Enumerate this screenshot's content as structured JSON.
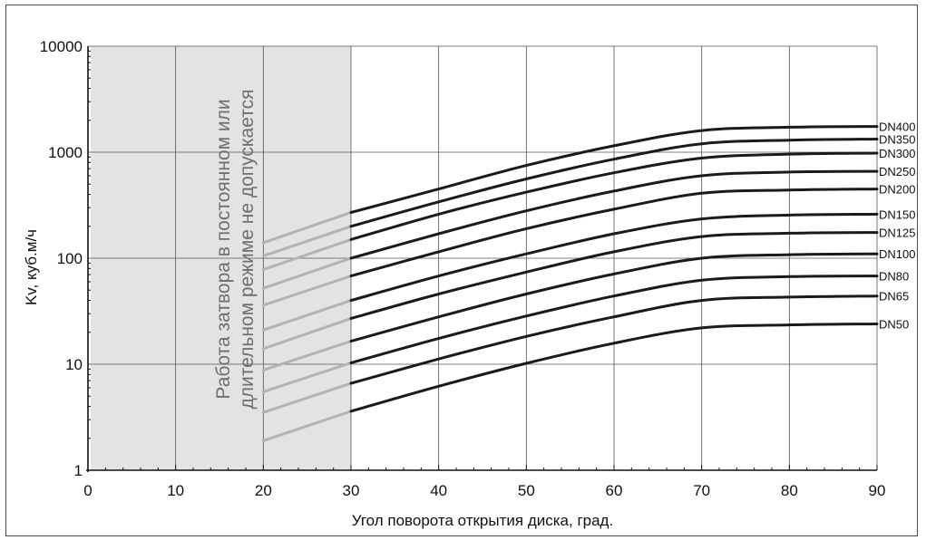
{
  "chart_data": {
    "type": "line",
    "title": "",
    "xlabel": "Угол поворота открытия диска, град.",
    "ylabel": "Kv, куб.м/ч",
    "xlim": [
      0,
      90
    ],
    "ylim": [
      1,
      10000
    ],
    "y_scale": "log",
    "x_ticks": [
      "0",
      "10",
      "20",
      "30",
      "40",
      "50",
      "60",
      "70",
      "80",
      "90"
    ],
    "y_ticks": [
      "1",
      "10",
      "100",
      "1000",
      "10000"
    ],
    "grid": true,
    "restricted_zone": {
      "x_range": [
        0,
        30
      ],
      "text_line1": "Работа затвора в постоянном или",
      "text_line2": "длительном режиме не допускается",
      "color": "#e2e3e5"
    },
    "colors": {
      "series": "#1a1a1a",
      "restricted_series": "#b3b3b3",
      "grid": "#555555"
    },
    "x": [
      20,
      30,
      40,
      50,
      60,
      70,
      80,
      90
    ],
    "series": [
      {
        "name": "DN400",
        "values": [
          140,
          270,
          450,
          750,
          1150,
          1600,
          1720,
          1750
        ]
      },
      {
        "name": "DN350",
        "values": [
          105,
          200,
          340,
          560,
          860,
          1200,
          1300,
          1330
        ]
      },
      {
        "name": "DN300",
        "values": [
          78,
          150,
          260,
          420,
          640,
          880,
          960,
          980
        ]
      },
      {
        "name": "DN250",
        "values": [
          52,
          100,
          170,
          280,
          430,
          600,
          650,
          660
        ]
      },
      {
        "name": "DN200",
        "values": [
          36,
          68,
          115,
          190,
          290,
          410,
          440,
          450
        ]
      },
      {
        "name": "DN150",
        "values": [
          21,
          40,
          68,
          110,
          170,
          235,
          255,
          260
        ]
      },
      {
        "name": "DN125",
        "values": [
          14,
          27,
          46,
          74,
          115,
          160,
          172,
          175
        ]
      },
      {
        "name": "DN100",
        "values": [
          8.8,
          16.5,
          28,
          46,
          71,
          100,
          108,
          110
        ]
      },
      {
        "name": "DN80",
        "values": [
          5.5,
          10.3,
          17.5,
          28.5,
          44,
          62,
          67,
          68
        ]
      },
      {
        "name": "DN65",
        "values": [
          3.5,
          6.6,
          11.2,
          18.3,
          28,
          40,
          43,
          44
        ]
      },
      {
        "name": "DN50",
        "values": [
          1.9,
          3.6,
          6.2,
          10.2,
          15.8,
          22,
          23.5,
          24
        ]
      }
    ]
  }
}
